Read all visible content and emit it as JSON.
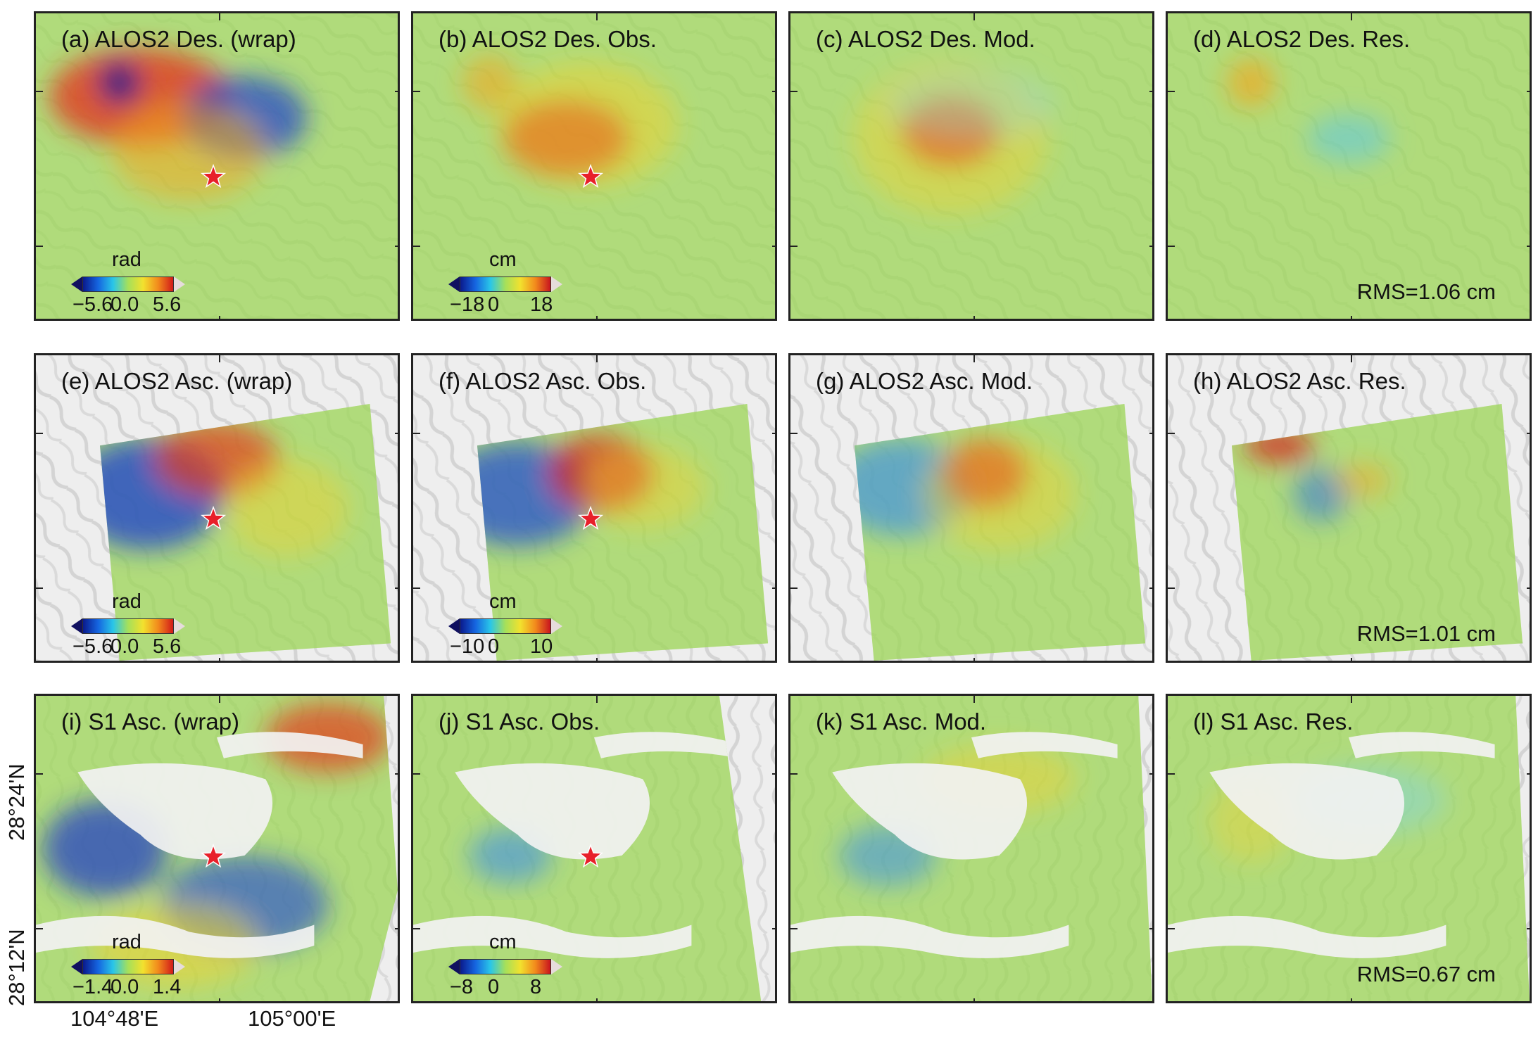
{
  "colors": {
    "frame": "#222222",
    "star": "#e8202a",
    "relief_light": "#eeeeee",
    "relief_dark": "#c9c9c9",
    "deformation_neutral": "#9ed65a",
    "colormap_low": "#0c1fb8",
    "colormap_high": "#c8141e"
  },
  "panels": [
    {
      "title": "(a) ALOS2 Des. (wrap)",
      "colorbar": {
        "unit": "rad",
        "ticks": [
          "−5.6",
          "0.0",
          "5.6"
        ]
      },
      "rms": null,
      "star": true
    },
    {
      "title": "(b) ALOS2 Des. Obs.",
      "colorbar": {
        "unit": "cm",
        "ticks": [
          "−18",
          "0",
          "18"
        ]
      },
      "rms": null,
      "star": true
    },
    {
      "title": "(c) ALOS2 Des. Mod.",
      "colorbar": null,
      "rms": null,
      "star": false
    },
    {
      "title": "(d) ALOS2 Des. Res.",
      "colorbar": null,
      "rms": "RMS=1.06 cm",
      "star": false
    },
    {
      "title": "(e) ALOS2 Asc. (wrap)",
      "colorbar": {
        "unit": "rad",
        "ticks": [
          "−5.6",
          "0.0",
          "5.6"
        ]
      },
      "rms": null,
      "star": true
    },
    {
      "title": "(f) ALOS2 Asc. Obs.",
      "colorbar": {
        "unit": "cm",
        "ticks": [
          "−10",
          "0",
          "10"
        ]
      },
      "rms": null,
      "star": true
    },
    {
      "title": "(g) ALOS2 Asc. Mod.",
      "colorbar": null,
      "rms": null,
      "star": false
    },
    {
      "title": "(h) ALOS2 Asc. Res.",
      "colorbar": null,
      "rms": "RMS=1.01 cm",
      "star": false
    },
    {
      "title": "(i) S1 Asc. (wrap)",
      "colorbar": {
        "unit": "rad",
        "ticks": [
          "−1.4",
          "0.0",
          "1.4"
        ]
      },
      "rms": null,
      "star": true
    },
    {
      "title": "(j) S1 Asc. Obs.",
      "colorbar": {
        "unit": "cm",
        "ticks": [
          "−8",
          "0",
          "8"
        ]
      },
      "rms": null,
      "star": true
    },
    {
      "title": "(k) S1 Asc. Mod.",
      "colorbar": null,
      "rms": null,
      "star": false
    },
    {
      "title": "(l) S1 Asc. Res.",
      "colorbar": null,
      "rms": "RMS=0.67 cm",
      "star": false
    }
  ],
  "axes": {
    "x_labels": [
      "104°48'E",
      "105°00'E"
    ],
    "y_labels": [
      "28°24'N",
      "28°12'N"
    ]
  }
}
